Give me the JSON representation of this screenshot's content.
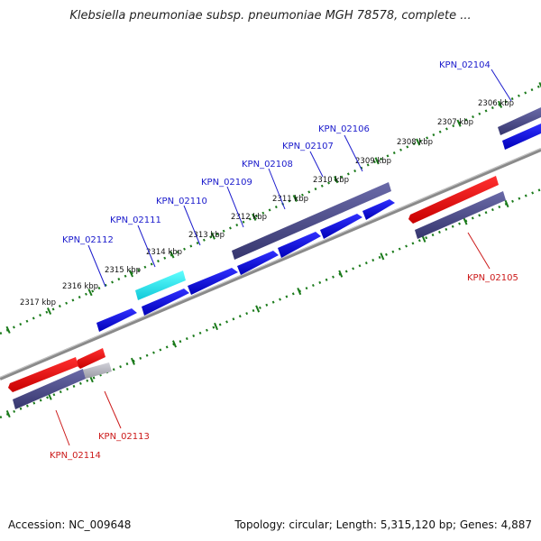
{
  "title": "Klebsiella pneumoniae subsp. pneumoniae MGH 78578, complete ...",
  "footer": {
    "accession": "Accession: NC_009648",
    "summary": "Topology: circular; Length: 5,315,120 bp; Genes: 4,887"
  },
  "colors": {
    "forward_gene": "#1010e0",
    "forward_gene_selected": "#20e0e8",
    "reverse_gene": "#e01010",
    "reverse_gene_grey": "#b8b8c0",
    "purple_band": "#4a4a8a",
    "genome_line": "#8a8a8a",
    "tick_green": "#1a7a1a",
    "label_forward": "#1a1acc",
    "label_reverse": "#cc1a1a"
  },
  "kbp_labels": [
    "2306 kbp",
    "2307 kbp",
    "2308 kbp",
    "2309 kbp",
    "2310 kbp",
    "2311 kbp",
    "2312 kbp",
    "2313 kbp",
    "2314 kbp",
    "2315 kbp",
    "2316 kbp",
    "2317 kbp"
  ],
  "forward_genes": [
    "KPN_02104",
    "KPN_02106",
    "KPN_02107",
    "KPN_02108",
    "KPN_02109",
    "KPN_02110",
    "KPN_02111",
    "KPN_02112"
  ],
  "reverse_genes": [
    "KPN_02105",
    "KPN_02113",
    "KPN_02114"
  ]
}
